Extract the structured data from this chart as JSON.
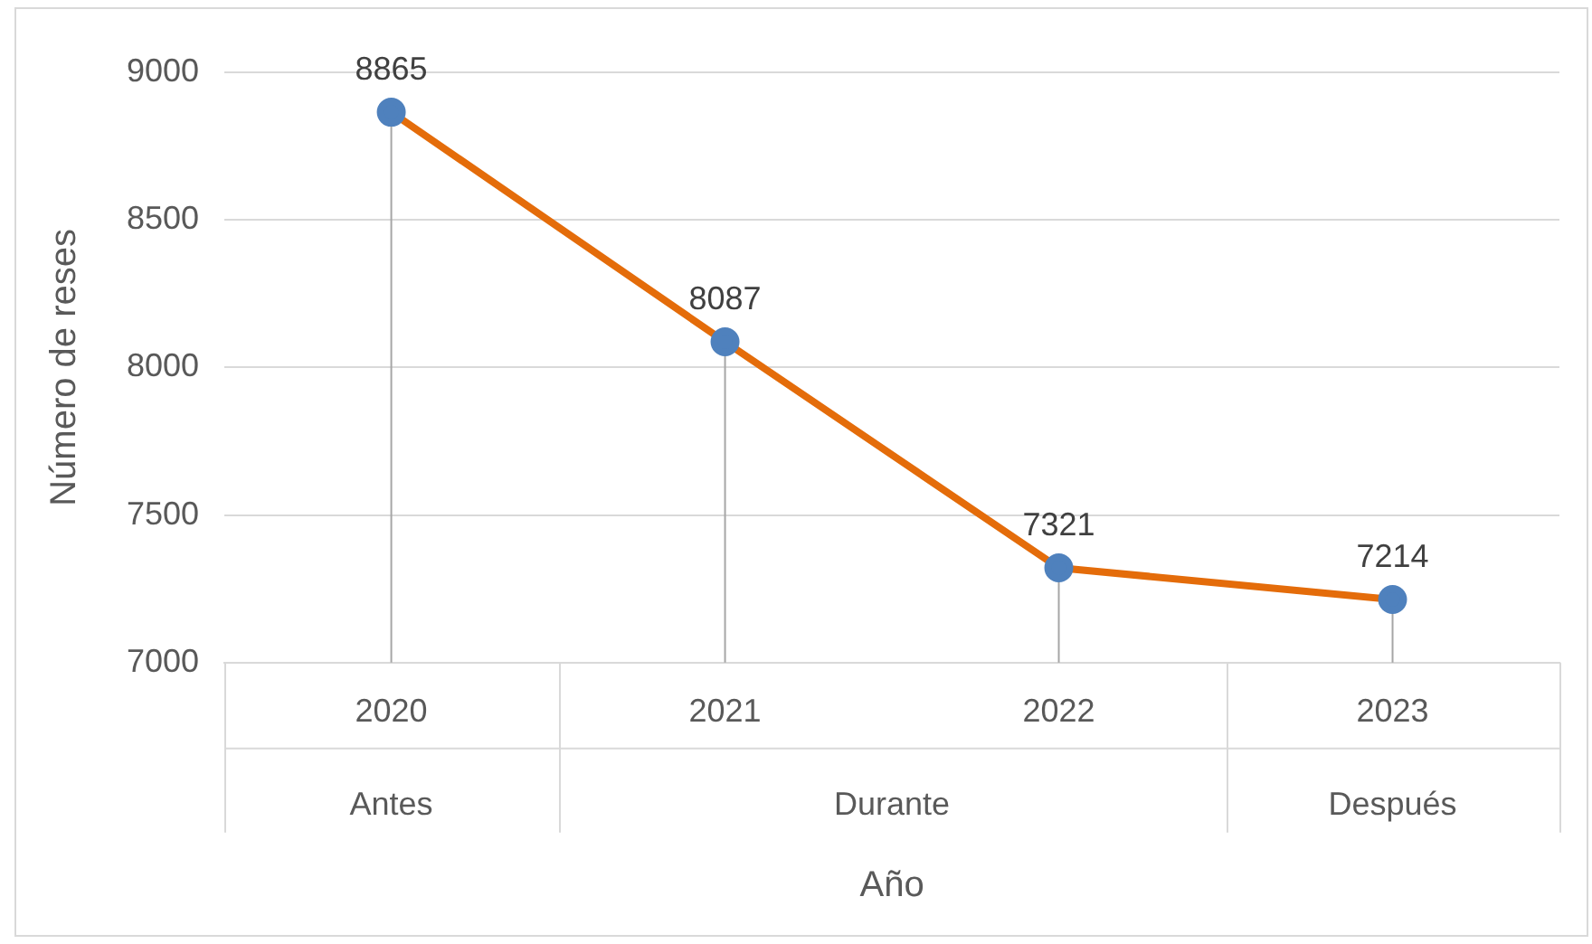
{
  "chart_data": {
    "type": "line",
    "xlabel": "Año",
    "ylabel": "Número de reses",
    "categories": [
      "2020",
      "2021",
      "2022",
      "2023"
    ],
    "series": [
      {
        "color": "#e46c0a",
        "colors": [
          "#4f81bd",
          "#4f81bd",
          "#4f81bd",
          "#4f81bd"
        ],
        "values": [
          8865,
          8087,
          7321,
          7214
        ],
        "errors": [
          [
            7000,
            8865
          ],
          [
            7000,
            8087
          ],
          [
            7000,
            7321
          ],
          [
            7000,
            7214
          ]
        ]
      }
    ],
    "ylim": [
      7000,
      9000
    ],
    "yticks": [
      7000,
      7500,
      8000,
      8500,
      9000
    ],
    "grid": "y",
    "legend": false,
    "marker": "circle",
    "line_style": "solid",
    "data_labels": true,
    "annotations": [
      "Antes",
      "Durante",
      "Después"
    ]
  }
}
